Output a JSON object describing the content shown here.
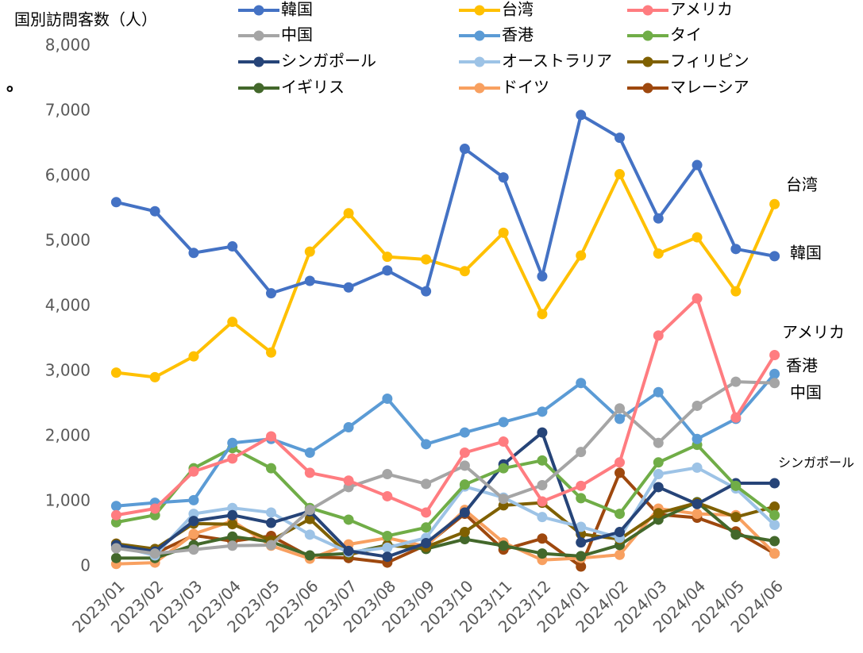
{
  "chart_data": {
    "type": "line",
    "title": "国別訪問客数（人）",
    "note": "。",
    "categories": [
      "2023/01",
      "2023/02",
      "2023/03",
      "2023/04",
      "2023/05",
      "2023/06",
      "2023/07",
      "2023/08",
      "2023/09",
      "2023/10",
      "2023/11",
      "2023/12",
      "2024/01",
      "2024/02",
      "2024/03",
      "2024/04",
      "2024/05",
      "2024/06"
    ],
    "series": [
      {
        "name": "韓国",
        "color": "#4472c4",
        "values": [
          5600,
          5460,
          4820,
          4920,
          4200,
          4390,
          4290,
          4550,
          4230,
          6420,
          5980,
          4460,
          6940,
          6590,
          5350,
          6170,
          4880,
          4770
        ]
      },
      {
        "name": "台湾",
        "color": "#ffc000",
        "values": [
          2980,
          2910,
          3230,
          3760,
          3290,
          4840,
          5430,
          4760,
          4720,
          4540,
          5130,
          3880,
          4780,
          6030,
          4810,
          5060,
          4230,
          5570
        ]
      },
      {
        "name": "アメリカ",
        "color": "#ff7c80",
        "values": [
          790,
          890,
          1460,
          1660,
          2000,
          1440,
          1320,
          1080,
          830,
          1750,
          1920,
          1000,
          1240,
          1600,
          3550,
          4120,
          2290,
          3250
        ]
      },
      {
        "name": "中国",
        "color": "#a5a5a5",
        "values": [
          280,
          200,
          260,
          320,
          330,
          870,
          1220,
          1420,
          1270,
          1550,
          1040,
          1250,
          1760,
          2430,
          1900,
          2470,
          2840,
          2820
        ]
      },
      {
        "name": "香港",
        "color": "#5b9bd5",
        "values": [
          930,
          980,
          1020,
          1900,
          1960,
          1750,
          2140,
          2580,
          1880,
          2060,
          2220,
          2380,
          2820,
          2270,
          2680,
          1960,
          2270,
          2960
        ]
      },
      {
        "name": "タイ",
        "color": "#70ad47",
        "values": [
          680,
          790,
          1510,
          1820,
          1510,
          900,
          720,
          470,
          600,
          1260,
          1510,
          1630,
          1050,
          810,
          1600,
          1870,
          1240,
          790
        ]
      },
      {
        "name": "シンガポール",
        "color": "#264478",
        "values": [
          330,
          230,
          700,
          790,
          670,
          850,
          240,
          150,
          360,
          830,
          1570,
          2060,
          370,
          530,
          1220,
          960,
          1280,
          1280
        ]
      },
      {
        "name": "オーストラリア",
        "color": "#9dc3e6",
        "values": [
          320,
          170,
          810,
          900,
          830,
          490,
          220,
          290,
          440,
          1230,
          1060,
          760,
          610,
          440,
          1420,
          1520,
          1200,
          640
        ]
      },
      {
        "name": "フィリピン",
        "color": "#7f6000",
        "values": [
          350,
          270,
          660,
          650,
          400,
          730,
          180,
          320,
          300,
          530,
          940,
          980,
          500,
          420,
          820,
          980,
          760,
          920
        ]
      },
      {
        "name": "イギリス",
        "color": "#43682b",
        "values": [
          130,
          130,
          330,
          460,
          380,
          170,
          200,
          330,
          270,
          420,
          320,
          200,
          160,
          330,
          720,
          990,
          490,
          390
        ]
      },
      {
        "name": "ドイツ",
        "color": "#f8a060",
        "values": [
          40,
          60,
          500,
          700,
          320,
          120,
          340,
          440,
          310,
          870,
          370,
          100,
          130,
          180,
          890,
          810,
          790,
          200
        ]
      },
      {
        "name": "マレーシア",
        "color": "#9e480e",
        "values": [
          350,
          200,
          480,
          390,
          470,
          150,
          130,
          60,
          330,
          810,
          260,
          430,
          0,
          1440,
          800,
          750,
          540,
          200
        ]
      }
    ],
    "ylim": [
      0,
      8000
    ],
    "yticks": [
      0,
      {
        "value": 1000,
        "label": "1,000"
      },
      {
        "value": 2000,
        "label": "2,000"
      },
      {
        "value": 3000,
        "label": "3,000"
      },
      {
        "value": 4000,
        "label": "4,000"
      },
      {
        "value": 5000,
        "label": "5,000"
      },
      {
        "value": 6000,
        "label": "6,000"
      },
      {
        "value": 7000,
        "label": "7,000"
      },
      {
        "value": 8000,
        "label": "8,000"
      }
    ],
    "annotations": [
      "台湾",
      "韓国",
      "アメリカ",
      "香港",
      "中国",
      "シンガポール"
    ],
    "legend": "top"
  }
}
